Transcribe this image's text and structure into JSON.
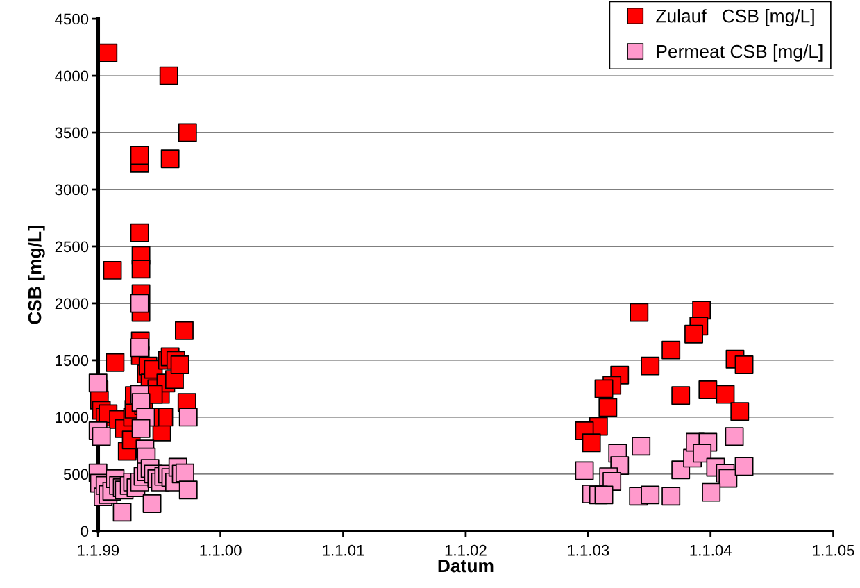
{
  "chart_data": {
    "type": "scatter",
    "xlabel": "Datum",
    "ylabel": "CSB [mg/L]",
    "xlim": [
      "1999-01-01",
      "2005-01-01"
    ],
    "xticks": [
      {
        "value": "1999-01-01",
        "label": "1.1.99"
      },
      {
        "value": "2000-01-01",
        "label": "1.1.00"
      },
      {
        "value": "2001-01-01",
        "label": "1.1.01"
      },
      {
        "value": "2002-01-01",
        "label": "1.1.02"
      },
      {
        "value": "2003-01-01",
        "label": "1.1.03"
      },
      {
        "value": "2004-01-01",
        "label": "1.1.04"
      },
      {
        "value": "2005-01-01",
        "label": "1.1.05"
      }
    ],
    "ylim": [
      0,
      4500
    ],
    "yticks": [
      0,
      500,
      1000,
      1500,
      2000,
      2500,
      3000,
      3500,
      4000,
      4500
    ],
    "grid": "y",
    "legend": "top right",
    "marker": "square",
    "series": [
      {
        "name": "Zulauf   CSB [mg/L]",
        "color": "#ff0000",
        "x": [
          "1999-01-31",
          "1999-07-31",
          "1999-09-25",
          "1999-05-05",
          "1999-05-05",
          "1999-08-04",
          "1999-05-05",
          "1999-05-09",
          "1999-05-09",
          "1999-02-13",
          "1999-05-09",
          "1999-05-09",
          "1999-09-15",
          "1999-02-21",
          "1999-05-07",
          "1999-05-07",
          "1999-01-04",
          "1999-01-05",
          "1999-01-11",
          "1999-01-22",
          "1999-01-31",
          "1999-03-03",
          "1999-03-20",
          "1999-03-29",
          "1999-04-10",
          "1999-04-14",
          "1999-04-18",
          "1999-04-19",
          "1999-05-17",
          "1999-05-25",
          "1999-05-30",
          "1999-06-05",
          "1999-06-15",
          "1999-06-25",
          "1999-07-06",
          "1999-07-10",
          "1999-07-16",
          "1999-07-22",
          "1999-07-27",
          "1999-08-04",
          "1999-08-17",
          "1999-08-21",
          "1999-09-02",
          "1999-09-23",
          "1999-06-05",
          "1999-06-15",
          "2003-06-02",
          "2003-12-05",
          "2003-11-27",
          "2003-11-12",
          "2003-09-05",
          "2003-07-05",
          "2004-03-14",
          "2004-04-10",
          "2003-04-05",
          "2003-03-13",
          "2003-02-17",
          "2003-03-01",
          "2003-10-04",
          "2003-12-24",
          "2004-02-14",
          "2004-03-28",
          "2003-02-01",
          "2002-12-21",
          "2003-01-11"
        ],
        "values": [
          4200,
          4000,
          3500,
          3230,
          3300,
          3270,
          2620,
          2420,
          2300,
          2290,
          2085,
          1920,
          1760,
          1480,
          1670,
          1540,
          1240,
          1150,
          1060,
          1000,
          1030,
          980,
          900,
          700,
          800,
          1000,
          1070,
          1190,
          1100,
          1380,
          1450,
          1300,
          1420,
          1250,
          1200,
          870,
          1000,
          1300,
          1500,
          1530,
          1330,
          1500,
          1460,
          1130,
          1000,
          1200,
          1920,
          1940,
          1800,
          1730,
          1590,
          1450,
          1510,
          1460,
          1370,
          1280,
          1250,
          1085,
          1190,
          1240,
          1200,
          1050,
          920,
          880,
          775
        ]
      },
      {
        "name": "Permeat CSB [mg/L]",
        "color": "#ff99cc",
        "x": [
          "1999-05-05",
          "1999-05-05",
          "1999-01-01",
          "1999-01-01",
          "1999-01-11",
          "1999-05-05",
          "1999-05-09",
          "1999-05-23",
          "1999-09-27",
          "1999-05-09",
          "1999-05-21",
          "1999-05-25",
          "1999-01-01",
          "1999-01-05",
          "1999-01-16",
          "1999-01-22",
          "1999-01-31",
          "1999-02-11",
          "1999-02-21",
          "1999-03-03",
          "1999-03-14",
          "1999-03-20",
          "1999-04-04",
          "1999-04-14",
          "1999-04-24",
          "1999-05-05",
          "1999-05-15",
          "1999-05-25",
          "1999-06-05",
          "1999-06-15",
          "1999-06-25",
          "1999-07-06",
          "1999-07-16",
          "1999-07-27",
          "1999-08-06",
          "1999-08-17",
          "1999-08-27",
          "1999-09-06",
          "1999-09-17",
          "1999-09-27",
          "1999-06-11",
          "1999-03-14",
          "2002-12-21",
          "2003-03-30",
          "2003-04-05",
          "2003-06-08",
          "2003-03-03",
          "2003-03-13",
          "2003-01-11",
          "2003-02-01",
          "2003-02-17",
          "2003-05-31",
          "2003-07-05",
          "2003-09-05",
          "2003-10-04",
          "2003-11-08",
          "2003-11-16",
          "2003-12-24",
          "2003-12-07",
          "2004-01-16",
          "2004-02-14",
          "2004-02-22",
          "2004-04-10",
          "2004-03-12",
          "2004-01-03"
        ],
        "values": [
          2000,
          1610,
          1300,
          880,
          830,
          1200,
          1130,
          1000,
          1000,
          900,
          720,
          650,
          510,
          420,
          300,
          400,
          320,
          350,
          460,
          400,
          380,
          360,
          400,
          430,
          380,
          430,
          480,
          520,
          550,
          500,
          460,
          430,
          480,
          500,
          470,
          430,
          560,
          500,
          510,
          360,
          240,
          165,
          530,
          683,
          575,
          745,
          477,
          435,
          325,
          317,
          317,
          305,
          317,
          305,
          537,
          640,
          780,
          780,
          683,
          560,
          506,
          463,
          567,
          830,
          340
        ]
      }
    ]
  }
}
